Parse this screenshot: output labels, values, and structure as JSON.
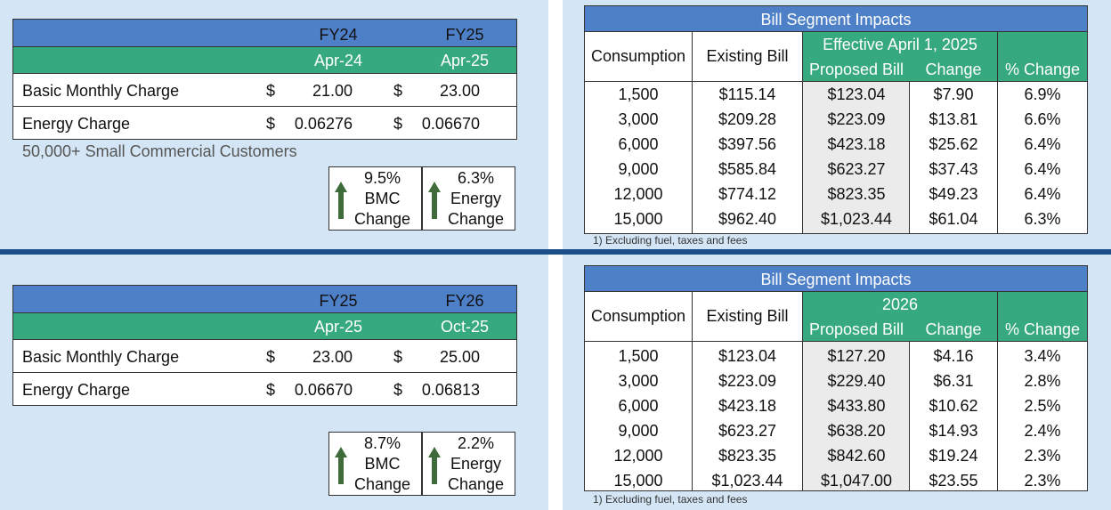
{
  "top": {
    "rate_table": {
      "years": [
        "FY24",
        "FY25"
      ],
      "months": [
        "Apr-24",
        "Apr-25"
      ],
      "rows": [
        {
          "label": "Basic Monthly Charge",
          "cur1": "$",
          "val1": "21.00",
          "cur2": "$",
          "val2": "23.00"
        },
        {
          "label": "Energy Charge",
          "cur1": "$",
          "val1": "0.06276",
          "cur2": "$",
          "val2": "0.06670"
        }
      ]
    },
    "note": "50,000+ Small Commercial Customers",
    "boxes": [
      {
        "pct": "9.5%",
        "l1": "BMC",
        "l2": "Change"
      },
      {
        "pct": "6.3%",
        "l1": "Energy",
        "l2": "Change"
      }
    ],
    "bill": {
      "title": "Bill Segment Impacts",
      "consumption": "Consumption",
      "existing": "Existing Bill",
      "group": "Effective April 1, 2025",
      "proposed": "Proposed Bill",
      "change": "Change",
      "pct_change": "% Change",
      "rows": [
        [
          "1,500",
          "$115.14",
          "$123.04",
          "$7.90",
          "6.9%"
        ],
        [
          "3,000",
          "$209.28",
          "$223.09",
          "$13.81",
          "6.6%"
        ],
        [
          "6,000",
          "$397.56",
          "$423.18",
          "$25.62",
          "6.4%"
        ],
        [
          "9,000",
          "$585.84",
          "$623.27",
          "$37.43",
          "6.4%"
        ],
        [
          "12,000",
          "$774.12",
          "$823.35",
          "$49.23",
          "6.4%"
        ],
        [
          "15,000",
          "$962.40",
          "$1,023.44",
          "$61.04",
          "6.3%"
        ]
      ],
      "footnote": "1) Excluding fuel, taxes and fees"
    }
  },
  "bottom": {
    "rate_table": {
      "years": [
        "FY25",
        "FY26"
      ],
      "months": [
        "Apr-25",
        "Oct-25"
      ],
      "rows": [
        {
          "label": "Basic Monthly Charge",
          "cur1": "$",
          "val1": "23.00",
          "cur2": "$",
          "val2": "25.00"
        },
        {
          "label": "Energy Charge",
          "cur1": "$",
          "val1": "0.06670",
          "cur2": "$",
          "val2": "0.06813"
        }
      ]
    },
    "boxes": [
      {
        "pct": "8.7%",
        "l1": "BMC",
        "l2": "Change"
      },
      {
        "pct": "2.2%",
        "l1": "Energy",
        "l2": "Change"
      }
    ],
    "bill": {
      "title": "Bill Segment Impacts",
      "consumption": "Consumption",
      "existing": "Existing Bill",
      "group": "2026",
      "proposed": "Proposed Bill",
      "change": "Change",
      "pct_change": "% Change",
      "rows": [
        [
          "1,500",
          "$123.04",
          "$127.20",
          "$4.16",
          "3.4%"
        ],
        [
          "3,000",
          "$223.09",
          "$229.40",
          "$6.31",
          "2.8%"
        ],
        [
          "6,000",
          "$423.18",
          "$433.80",
          "$10.62",
          "2.5%"
        ],
        [
          "9,000",
          "$623.27",
          "$638.20",
          "$14.93",
          "2.4%"
        ],
        [
          "12,000",
          "$823.35",
          "$842.60",
          "$19.24",
          "2.3%"
        ],
        [
          "15,000",
          "$1,023.44",
          "$1,047.00",
          "$23.55",
          "2.3%"
        ]
      ],
      "footnote": "1) Excluding fuel, taxes and fees"
    }
  },
  "colors": {
    "header_blue": "#4e80c8",
    "header_green": "#36a97e",
    "panel_bg": "#d4e6f5",
    "divider": "#1b4f8a",
    "arrow": "#3f6b3a"
  }
}
